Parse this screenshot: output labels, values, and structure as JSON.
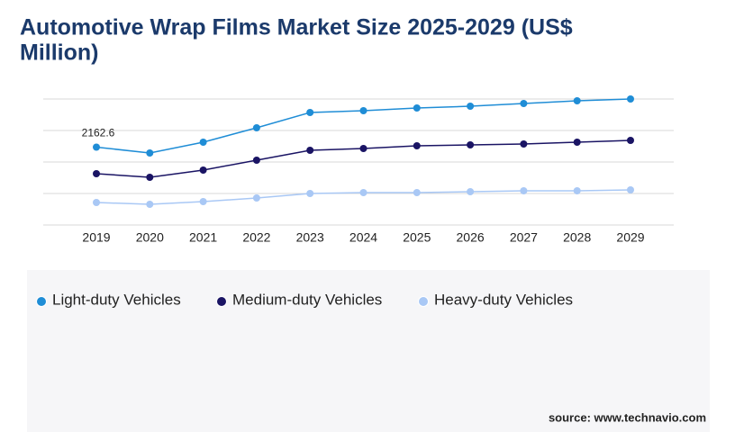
{
  "chart_data": {
    "type": "line",
    "title": "Automotive Wrap Films Market Size 2025-2029 (US$ Million)",
    "categories": [
      "2019",
      "2020",
      "2021",
      "2022",
      "2023",
      "2024",
      "2025",
      "2026",
      "2027",
      "2028",
      "2029"
    ],
    "series": [
      {
        "name": "Light-duty Vehicles",
        "color": "#1f8dd6",
        "values": [
          2162.6,
          2000,
          2300,
          2700,
          3125,
          3175,
          3250,
          3300,
          3375,
          3450,
          3500
        ]
      },
      {
        "name": "Medium-duty Vehicles",
        "color": "#1a1464",
        "values": [
          1425,
          1325,
          1525,
          1800,
          2075,
          2125,
          2200,
          2225,
          2250,
          2300,
          2350
        ]
      },
      {
        "name": "Heavy-duty Vehicles",
        "color": "#a9c8f5",
        "values": [
          625,
          575,
          650,
          750,
          875,
          900,
          900,
          925,
          950,
          950,
          975
        ]
      }
    ],
    "ylim": [
      0,
      3500
    ],
    "yticks": [
      0,
      875,
      1750,
      2625,
      3500
    ],
    "grid": true,
    "source": "source: www.technavio.com"
  }
}
